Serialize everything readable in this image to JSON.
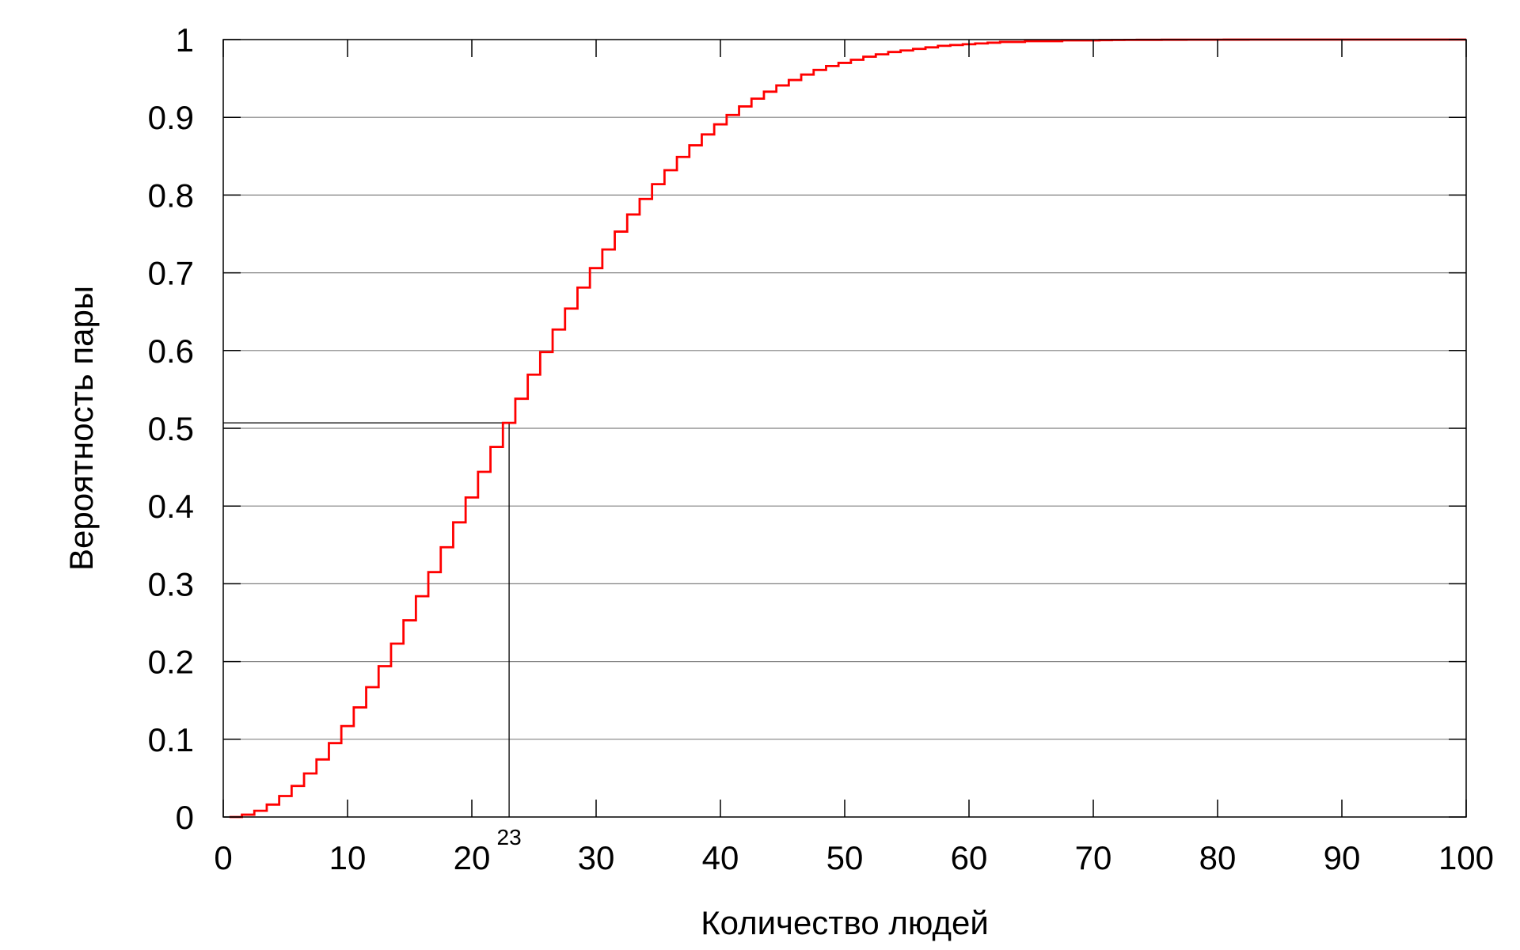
{
  "chart_data": {
    "type": "line",
    "step": true,
    "title": "",
    "xlabel": "Количество людей",
    "ylabel": "Вероятность пары",
    "xlim": [
      0,
      100
    ],
    "ylim": [
      0,
      1
    ],
    "xticks": [
      "0",
      "10",
      "20",
      "30",
      "40",
      "50",
      "60",
      "70",
      "80",
      "90",
      "100"
    ],
    "yticks": [
      "0",
      "0.1",
      "0.2",
      "0.3",
      "0.4",
      "0.5",
      "0.6",
      "0.7",
      "0.8",
      "0.9",
      "1"
    ],
    "grid": "horizontal",
    "annotation": {
      "label": "23",
      "x": 23,
      "y": 0.507
    },
    "series": [
      {
        "color": "#ff0000",
        "points_from": 1,
        "points_to": 100,
        "x": [
          1,
          2,
          3,
          4,
          5,
          6,
          7,
          8,
          9,
          10,
          11,
          12,
          13,
          14,
          15,
          16,
          17,
          18,
          19,
          20,
          21,
          22,
          23,
          24,
          25,
          26,
          27,
          28,
          29,
          30,
          31,
          32,
          33,
          34,
          35,
          36,
          37,
          38,
          39,
          40,
          41,
          42,
          43,
          44,
          45,
          46,
          47,
          48,
          49,
          50,
          51,
          52,
          53,
          54,
          55,
          56,
          57,
          58,
          59,
          60,
          61,
          62,
          63,
          64,
          65,
          66,
          67,
          68,
          69,
          70,
          71,
          72,
          73,
          74,
          75,
          76,
          77,
          78,
          79,
          80,
          81,
          82,
          83,
          84,
          85,
          86,
          87,
          88,
          89,
          90,
          91,
          92,
          93,
          94,
          95,
          96,
          97,
          98,
          99,
          100
        ],
        "y": [
          0,
          0.003,
          0.008,
          0.016,
          0.027,
          0.04,
          0.056,
          0.074,
          0.095,
          0.117,
          0.141,
          0.167,
          0.194,
          0.223,
          0.253,
          0.284,
          0.315,
          0.347,
          0.379,
          0.411,
          0.444,
          0.476,
          0.507,
          0.538,
          0.569,
          0.598,
          0.627,
          0.654,
          0.681,
          0.706,
          0.73,
          0.753,
          0.775,
          0.795,
          0.814,
          0.832,
          0.849,
          0.864,
          0.878,
          0.891,
          0.903,
          0.914,
          0.924,
          0.933,
          0.941,
          0.948,
          0.955,
          0.961,
          0.966,
          0.97,
          0.974,
          0.978,
          0.981,
          0.984,
          0.986,
          0.988,
          0.99,
          0.992,
          0.993,
          0.994,
          0.995,
          0.996,
          0.997,
          0.997,
          0.998,
          0.998,
          0.998,
          0.999,
          0.999,
          0.999,
          0.9993,
          0.9995,
          0.9996,
          0.9997,
          0.9997,
          0.9998,
          0.9998,
          0.9999,
          0.9999,
          0.9999,
          0.99995,
          0.99996,
          0.99997,
          0.99997,
          0.99998,
          0.99998,
          0.99999,
          0.99999,
          0.99999,
          0.99999,
          1,
          1,
          1,
          1,
          1,
          1,
          1,
          1,
          1,
          1
        ]
      }
    ]
  }
}
